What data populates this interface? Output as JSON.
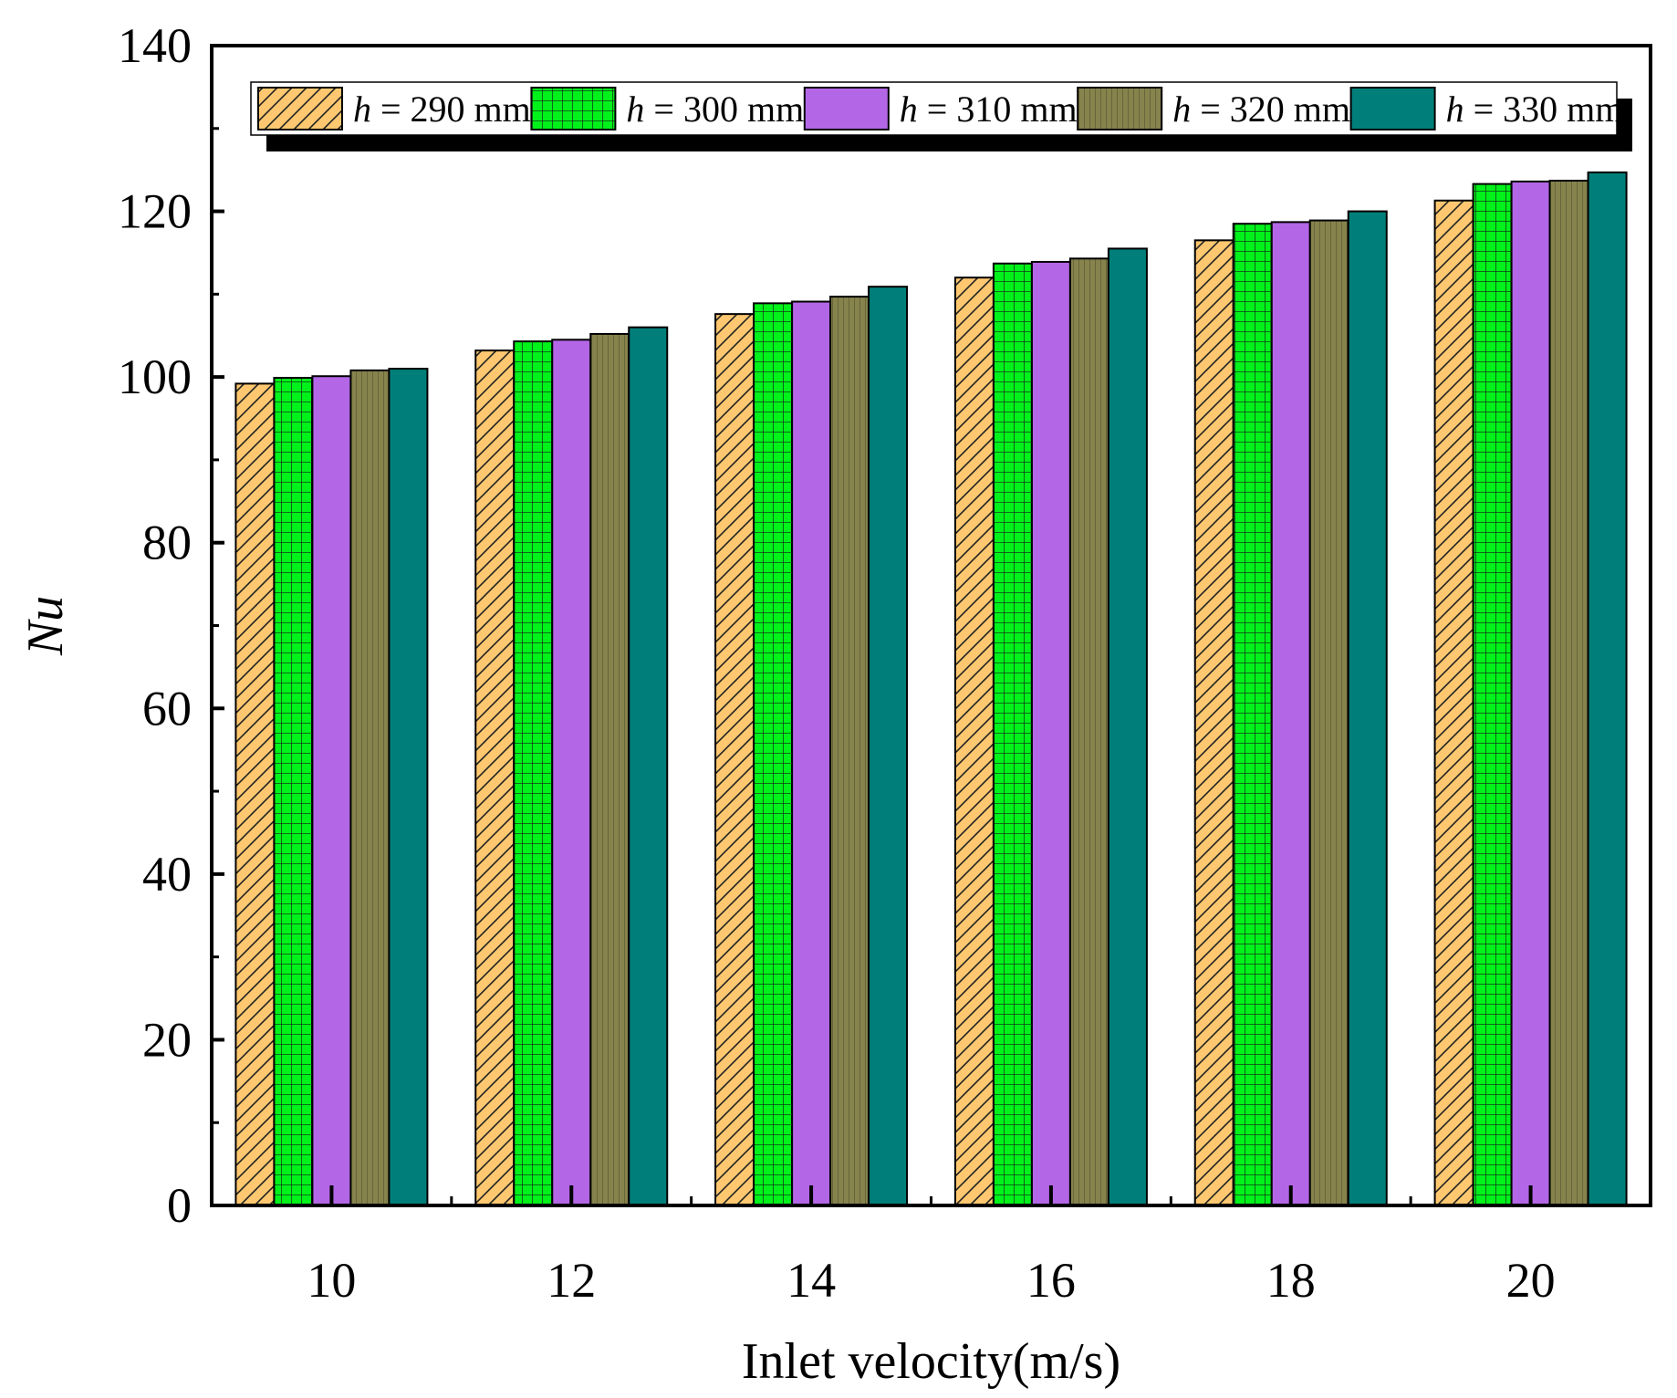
{
  "chart_data": {
    "type": "bar",
    "title": "",
    "xlabel": "Inlet velocity(m/s)",
    "ylabel": "Nu",
    "ylim": [
      0,
      140
    ],
    "yticks": [
      0,
      20,
      40,
      60,
      80,
      100,
      120,
      140
    ],
    "categories": [
      "10",
      "12",
      "14",
      "16",
      "18",
      "20"
    ],
    "legend_position": "top",
    "series": [
      {
        "name_prefix": "h",
        "name_suffix": " = 290 mm",
        "color": "#FFC870",
        "pattern": "diagonal-hatch",
        "values": [
          99.2,
          103.2,
          107.6,
          112.0,
          116.5,
          121.3
        ]
      },
      {
        "name_prefix": "h",
        "name_suffix": " = 300 mm",
        "color": "#00F21A",
        "pattern": "grid",
        "values": [
          99.9,
          104.3,
          108.9,
          113.7,
          118.5,
          123.3
        ]
      },
      {
        "name_prefix": "h",
        "name_suffix": " = 310 mm",
        "color": "#B366E6",
        "pattern": "solid",
        "values": [
          100.1,
          104.5,
          109.1,
          113.9,
          118.7,
          123.6
        ]
      },
      {
        "name_prefix": "h",
        "name_suffix": " = 320 mm",
        "color": "#86834D",
        "pattern": "vertical-lines",
        "values": [
          100.8,
          105.2,
          109.7,
          114.3,
          118.9,
          123.7
        ]
      },
      {
        "name_prefix": "h",
        "name_suffix": " = 330 mm",
        "color": "#007F7A",
        "pattern": "solid",
        "values": [
          101.0,
          106.0,
          110.9,
          115.5,
          120.0,
          124.7
        ]
      }
    ]
  }
}
